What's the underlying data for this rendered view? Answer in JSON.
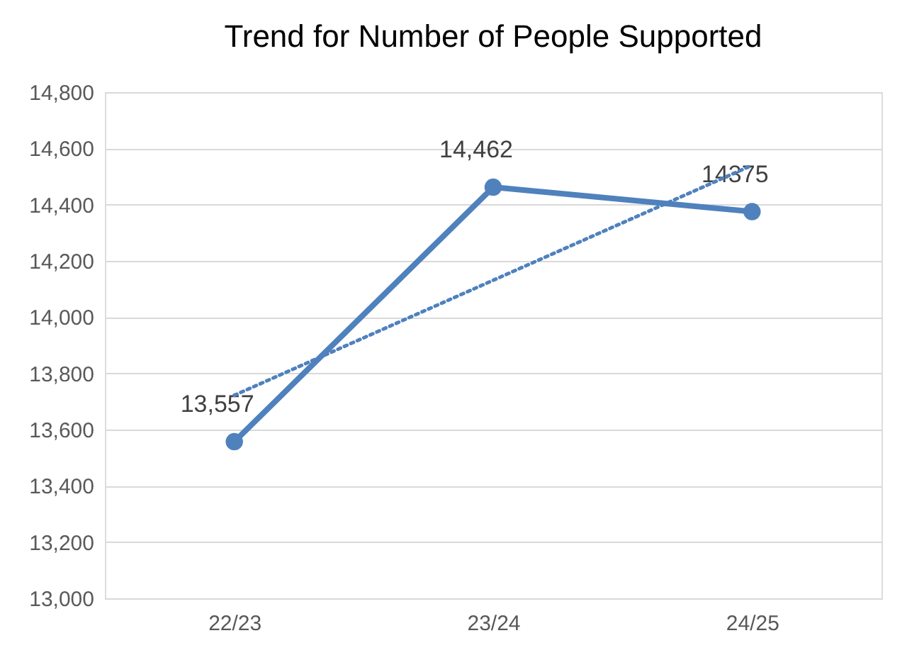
{
  "chart_data": {
    "type": "line",
    "title": "Trend for Number of People Supported",
    "categories": [
      "22/23",
      "23/24",
      "24/25"
    ],
    "series": [
      {
        "color": "#4f81bd",
        "values": [
          13557,
          14462,
          14375
        ],
        "value_labels": [
          "13,557",
          "14,462",
          "14375"
        ],
        "marker": "circle",
        "line_style": "solid"
      },
      {
        "type": "line",
        "color": "#4f81bd",
        "values": [
          13722,
          14131,
          14540
        ],
        "marker": "none",
        "line_style": "dotted"
      }
    ],
    "ylim": [
      13000,
      14800
    ],
    "yticks": [
      {
        "value": 13000,
        "label": "13,000"
      },
      {
        "value": 13200,
        "label": "13,200"
      },
      {
        "value": 13400,
        "label": "13,400"
      },
      {
        "value": 13600,
        "label": "13,600"
      },
      {
        "value": 13800,
        "label": "13,800"
      },
      {
        "value": 14000,
        "label": "14,000"
      },
      {
        "value": 14200,
        "label": "14,200"
      },
      {
        "value": 14400,
        "label": "14,400"
      },
      {
        "value": 14600,
        "label": "14,600"
      },
      {
        "value": 14800,
        "label": "14,800"
      }
    ],
    "grid": "y"
  }
}
